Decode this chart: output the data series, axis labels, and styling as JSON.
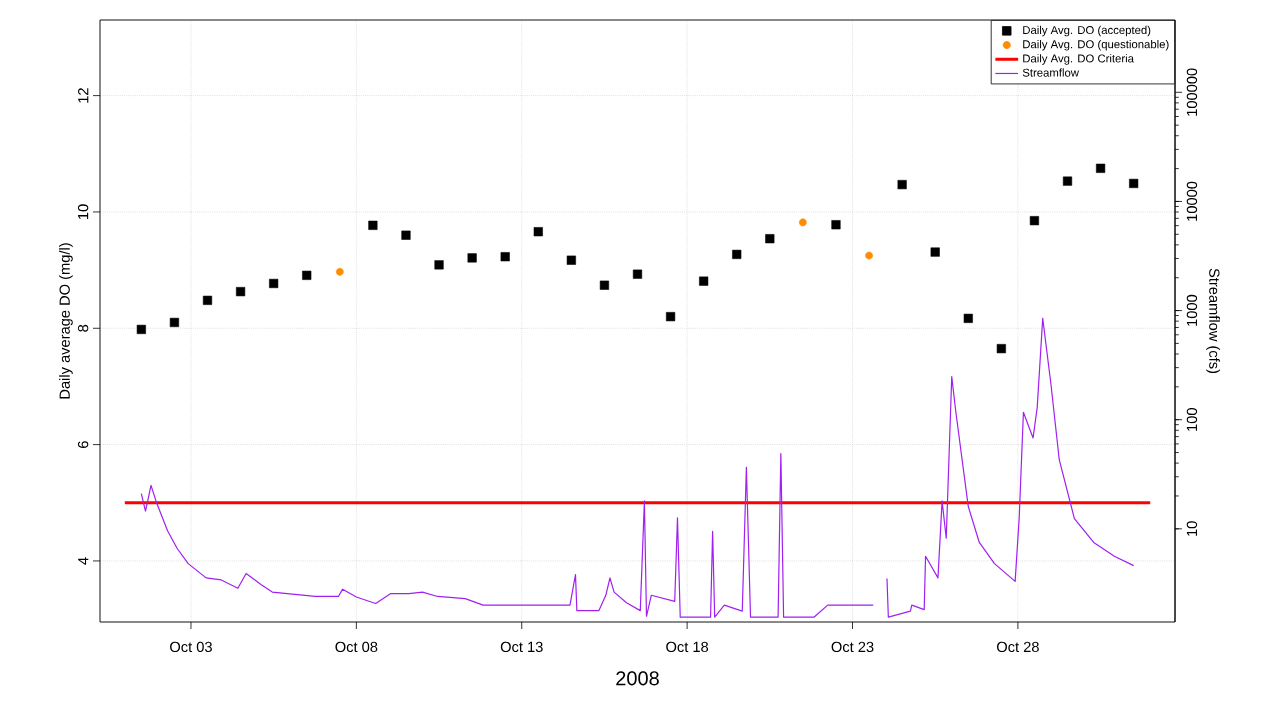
{
  "chart_data": {
    "type": "scatter",
    "xlabel": "2008",
    "ylabel": "Daily average DO (mg/l)",
    "y2label": "Streamflow (cfs)",
    "xlim": [
      "2008-09-30T06:00",
      "2008-11-01T18:00"
    ],
    "xticks": [
      {
        "value": "2008-10-03",
        "label": "Oct 03"
      },
      {
        "value": "2008-10-08",
        "label": "Oct 08"
      },
      {
        "value": "2008-10-13",
        "label": "Oct 13"
      },
      {
        "value": "2008-10-18",
        "label": "Oct 18"
      },
      {
        "value": "2008-10-23",
        "label": "Oct 23"
      },
      {
        "value": "2008-10-28",
        "label": "Oct 28"
      }
    ],
    "ylim": [
      2.95,
      13.3
    ],
    "yticks": [
      4,
      6,
      8,
      10,
      12
    ],
    "y2lim": [
      1.4,
      460000
    ],
    "y2ticks": [
      10,
      100,
      1000,
      10000,
      100000
    ],
    "log": "y2",
    "grid": true,
    "legend": "top right",
    "series": [
      {
        "name": "Daily Avg. DO (accepted)",
        "marker": "square",
        "color": "#000000",
        "x": [
          "2008-10-01T12:00",
          "2008-10-02T12:00",
          "2008-10-03T12:00",
          "2008-10-04T12:00",
          "2008-10-05T12:00",
          "2008-10-06T12:00",
          "2008-10-08T12:00",
          "2008-10-09T12:00",
          "2008-10-10T12:00",
          "2008-10-11T12:00",
          "2008-10-12T12:00",
          "2008-10-13T12:00",
          "2008-10-14T12:00",
          "2008-10-15T12:00",
          "2008-10-16T12:00",
          "2008-10-17T12:00",
          "2008-10-18T12:00",
          "2008-10-19T12:00",
          "2008-10-20T12:00",
          "2008-10-22T12:00",
          "2008-10-24T12:00",
          "2008-10-25T12:00",
          "2008-10-26T12:00",
          "2008-10-27T12:00",
          "2008-10-28T12:00",
          "2008-10-29T12:00",
          "2008-10-30T12:00",
          "2008-10-31T12:00"
        ],
        "values": [
          7.98,
          8.1,
          8.48,
          8.63,
          8.77,
          8.91,
          9.77,
          9.6,
          9.09,
          9.21,
          9.23,
          9.66,
          9.17,
          8.74,
          8.93,
          8.2,
          8.81,
          9.27,
          9.54,
          9.78,
          10.47,
          9.31,
          8.17,
          7.65,
          9.85,
          10.53,
          10.75,
          10.49
        ]
      },
      {
        "name": "Daily Avg. DO (questionable)",
        "marker": "circle",
        "color": "#ff8c00",
        "x": [
          "2008-10-07T12:00",
          "2008-10-21T12:00",
          "2008-10-23T12:00"
        ],
        "values": [
          8.97,
          9.82,
          9.25
        ]
      },
      {
        "name": "Daily Avg. DO Criteria",
        "type": "line",
        "color": "#ff0000",
        "x": [
          "2008-10-01T00:00",
          "2008-11-01T00:00"
        ],
        "values": [
          5,
          5
        ]
      },
      {
        "name": "Streamflow",
        "type": "line",
        "axis": "y2",
        "color": "#a020f0",
        "x": [
          "2008-10-01T12:00",
          "2008-10-01T15:00",
          "2008-10-01T19:00",
          "2008-10-01T23:00",
          "2008-10-02T07:00",
          "2008-10-02T14:00",
          "2008-10-02T22:00",
          "2008-10-03T11:00",
          "2008-10-03T22:00",
          "2008-10-04T10:00",
          "2008-10-04T16:00",
          "2008-10-05T03:00",
          "2008-10-05T11:00",
          "2008-10-06T18:00",
          "2008-10-07T11:00",
          "2008-10-07T14:00",
          "2008-10-08T00:00",
          "2008-10-08T14:00",
          "2008-10-09T01:00",
          "2008-10-09T14:00",
          "2008-10-10T00:00",
          "2008-10-10T11:00",
          "2008-10-11T07:00",
          "2008-10-11T20:00",
          "2008-10-14T11:00",
          "2008-10-14T15:00",
          "2008-10-14T16:00",
          "2008-10-15T08:00",
          "2008-10-15T13:00",
          "2008-10-15T16:00",
          "2008-10-15T19:00",
          "2008-10-16T04:00",
          "2008-10-16T14:00",
          "2008-10-16T17:00",
          "2008-10-16T18:30",
          "2008-10-16T22:00",
          "2008-10-17T15:00",
          "2008-10-17T17:00",
          "2008-10-17T19:00",
          "2008-10-18T17:00",
          "2008-10-18T18:30",
          "2008-10-18T20:00",
          "2008-10-19T03:00",
          "2008-10-19T16:00",
          "2008-10-19T19:00",
          "2008-10-19T22:00",
          "2008-10-20T18:00",
          "2008-10-20T20:00",
          "2008-10-20T22:00",
          "2008-10-21T20:00",
          "2008-10-22T06:00",
          "2008-10-23T15:00",
          "2008-10-23T20:00",
          "2008-10-24T01:00",
          "2008-10-24T02:00",
          "2008-10-24T18:00",
          "2008-10-24T19:00",
          "2008-10-25T04:00",
          "2008-10-25T05:00",
          "2008-10-25T14:00",
          "2008-10-25T17:00",
          "2008-10-25T20:00",
          "2008-10-26T00:00",
          "2008-10-26T03:00",
          "2008-10-26T12:00",
          "2008-10-26T20:00",
          "2008-10-27T07:00",
          "2008-10-27T22:00",
          "2008-10-28T01:00",
          "2008-10-28T04:00",
          "2008-10-28T11:00",
          "2008-10-28T14:00",
          "2008-10-28T18:00",
          "2008-10-29T00:00",
          "2008-10-29T06:00",
          "2008-10-29T17:00",
          "2008-10-30T07:00",
          "2008-10-30T22:00",
          "2008-10-31T12:00"
        ],
        "values": [
          21,
          14.5,
          25,
          17.4,
          9.6,
          6.6,
          4.8,
          3.55,
          3.4,
          2.85,
          3.9,
          3.07,
          2.63,
          2.4,
          2.4,
          2.8,
          2.37,
          2.07,
          2.55,
          2.55,
          2.63,
          2.4,
          2.29,
          2.0,
          2.0,
          3.8,
          1.78,
          1.78,
          2.46,
          3.55,
          2.63,
          2.1,
          1.78,
          18,
          1.58,
          2.46,
          2.16,
          12.6,
          1.55,
          1.55,
          9.5,
          1.55,
          2.0,
          1.76,
          36.6,
          1.55,
          1.55,
          49,
          1.55,
          1.55,
          2.0,
          2.0,
          null,
          3.5,
          1.55,
          1.76,
          2.0,
          1.82,
          5.6,
          3.55,
          18,
          8.2,
          248,
          117,
          16,
          7.5,
          4.8,
          3.3,
          13,
          117,
          68,
          129,
          850,
          210,
          43,
          12.4,
          7.5,
          5.6,
          4.6
        ]
      }
    ]
  }
}
